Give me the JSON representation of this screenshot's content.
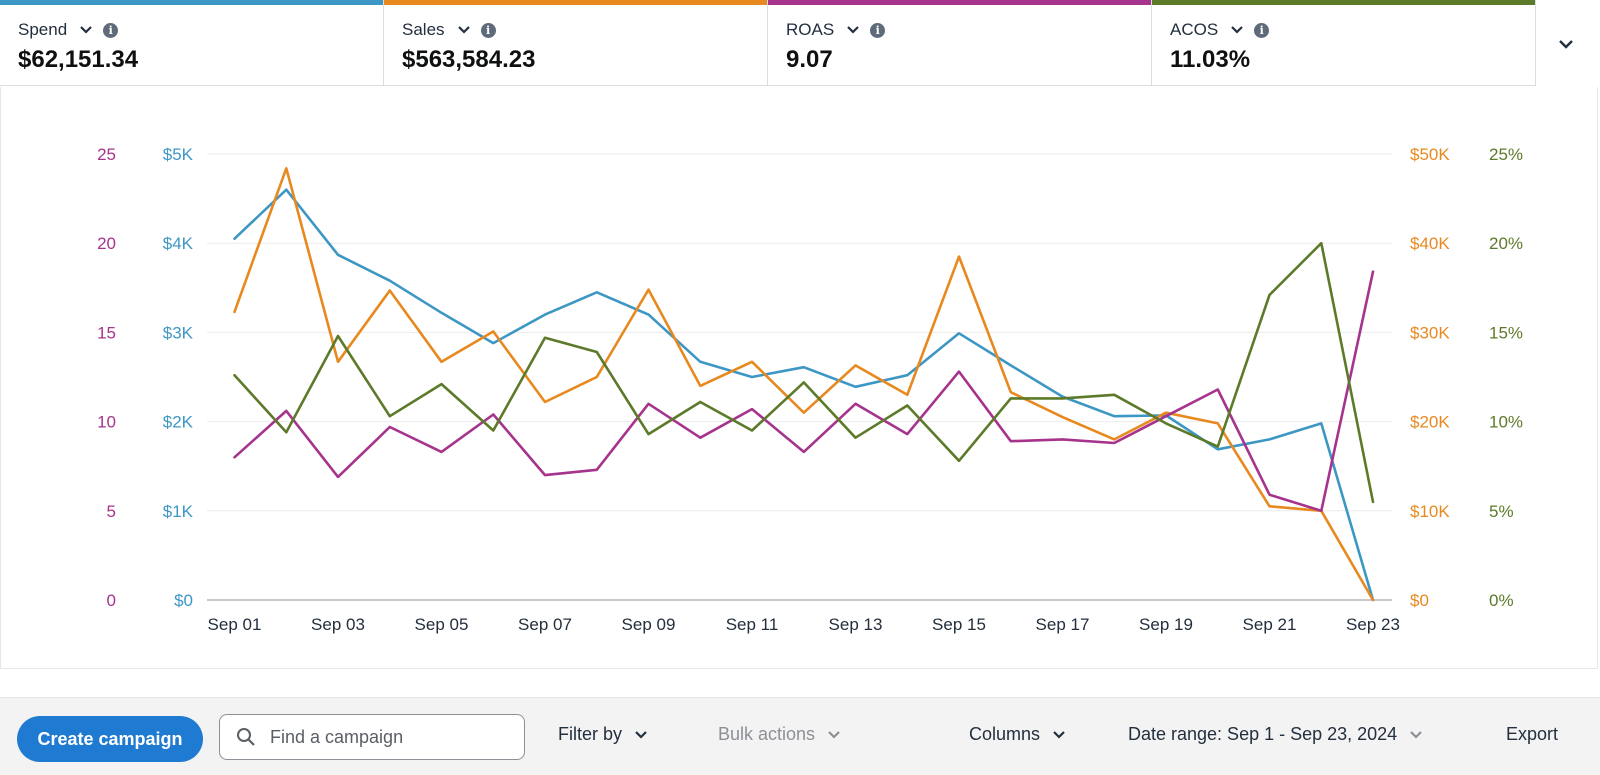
{
  "metrics": [
    {
      "label": "Spend",
      "value": "$62,151.34",
      "color": "#3d97c4"
    },
    {
      "label": "Sales",
      "value": "$563,584.23",
      "color": "#e8891f"
    },
    {
      "label": "ROAS",
      "value": "9.07",
      "color": "#a6338c"
    },
    {
      "label": "ACOS",
      "value": "11.03%",
      "color": "#5c7a29"
    }
  ],
  "chart_data": {
    "type": "line",
    "x": [
      "Sep 01",
      "Sep 02",
      "Sep 03",
      "Sep 04",
      "Sep 05",
      "Sep 06",
      "Sep 07",
      "Sep 08",
      "Sep 09",
      "Sep 10",
      "Sep 11",
      "Sep 12",
      "Sep 13",
      "Sep 14",
      "Sep 15",
      "Sep 16",
      "Sep 17",
      "Sep 18",
      "Sep 19",
      "Sep 20",
      "Sep 21",
      "Sep 22",
      "Sep 23"
    ],
    "x_tick_labels": [
      "Sep 01",
      "Sep 03",
      "Sep 05",
      "Sep 07",
      "Sep 09",
      "Sep 11",
      "Sep 13",
      "Sep 15",
      "Sep 17",
      "Sep 19",
      "Sep 21",
      "Sep 23"
    ],
    "grid": true,
    "axes": {
      "roas": {
        "side": "left-outer",
        "min": 0,
        "max": 25,
        "ticks": [
          "0",
          "5",
          "10",
          "15",
          "20",
          "25"
        ],
        "color": "#a6338c"
      },
      "spend": {
        "side": "left-inner",
        "min": 0,
        "max": 5000,
        "ticks": [
          "$0",
          "$1K",
          "$2K",
          "$3K",
          "$4K",
          "$5K"
        ],
        "color": "#3d97c4"
      },
      "sales": {
        "side": "right-inner",
        "min": 0,
        "max": 50000,
        "ticks": [
          "$0",
          "$10K",
          "$20K",
          "$30K",
          "$40K",
          "$50K"
        ],
        "color": "#e8891f"
      },
      "acos": {
        "side": "right-outer",
        "min": 0,
        "max": 25,
        "ticks": [
          "0%",
          "5%",
          "10%",
          "15%",
          "20%",
          "25%"
        ],
        "color": "#5c7a29"
      }
    },
    "series": [
      {
        "name": "Spend",
        "axis": "spend",
        "color": "#3d97c4",
        "values": [
          4050,
          4600,
          3870,
          3580,
          3220,
          2880,
          3200,
          3450,
          3200,
          2670,
          2500,
          2610,
          2390,
          2520,
          2990,
          2630,
          2280,
          2060,
          2070,
          1690,
          1800,
          1980,
          0
        ]
      },
      {
        "name": "Sales",
        "axis": "sales",
        "color": "#e8891f",
        "values": [
          32300,
          48400,
          26700,
          34700,
          26700,
          30100,
          22200,
          25000,
          34800,
          24000,
          26700,
          21000,
          26300,
          23000,
          38500,
          23300,
          20500,
          18000,
          21000,
          19800,
          10500,
          10000,
          0
        ]
      },
      {
        "name": "ROAS",
        "axis": "roas",
        "color": "#a6338c",
        "values": [
          8.0,
          10.6,
          6.9,
          9.7,
          8.3,
          10.4,
          7.0,
          7.3,
          11.0,
          9.1,
          10.7,
          8.3,
          11.0,
          9.3,
          12.8,
          8.9,
          9.0,
          8.8,
          10.3,
          11.8,
          5.9,
          5.0,
          18.4
        ]
      },
      {
        "name": "ACOS",
        "axis": "acos",
        "color": "#5c7a29",
        "values": [
          12.6,
          9.4,
          14.8,
          10.3,
          12.1,
          9.5,
          14.7,
          13.9,
          9.3,
          11.1,
          9.5,
          12.2,
          9.1,
          10.9,
          7.8,
          11.3,
          11.3,
          11.5,
          9.9,
          8.6,
          17.1,
          20.0,
          5.5
        ]
      }
    ]
  },
  "toolbar": {
    "create_label": "Create campaign",
    "search_placeholder": "Find a campaign",
    "filter_label": "Filter by",
    "bulk_label": "Bulk actions",
    "columns_label": "Columns",
    "date_range_label": "Date range: Sep 1 - Sep 23, 2024",
    "export_label": "Export"
  }
}
